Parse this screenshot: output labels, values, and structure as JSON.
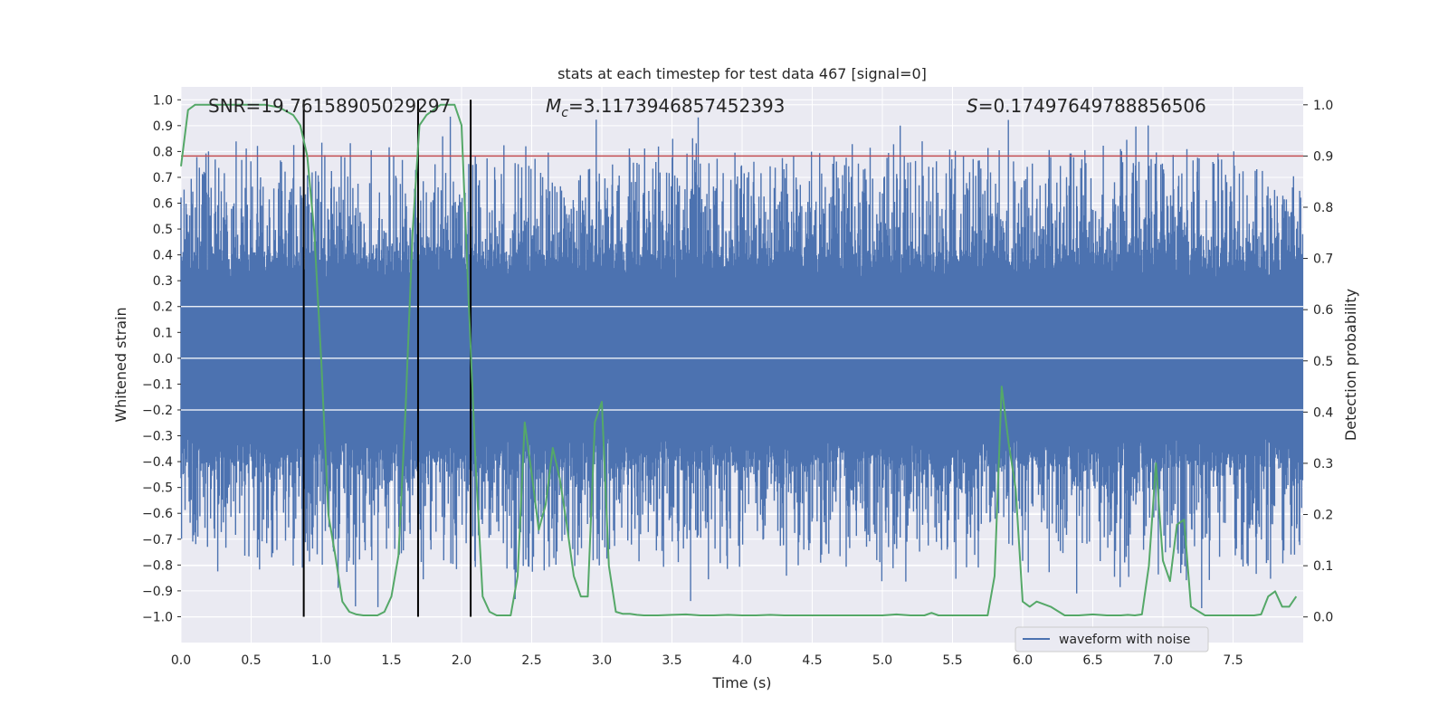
{
  "chart_data": {
    "type": "line",
    "title": "stats at each timestep for test data 467 [signal=0]",
    "xlabel": "Time (s)",
    "ylabel_left": "Whitened strain",
    "ylabel_right": "Detection probability",
    "xlim": [
      0,
      8.0
    ],
    "ylim_left": [
      -1.1,
      1.05
    ],
    "ylim_right": [
      -0.05,
      1.035
    ],
    "x_ticks": [
      "0.0",
      "0.5",
      "1.0",
      "1.5",
      "2.0",
      "2.5",
      "3.0",
      "3.5",
      "4.0",
      "4.5",
      "5.0",
      "5.5",
      "6.0",
      "6.5",
      "7.0",
      "7.5"
    ],
    "y_left_ticks": [
      "1.0",
      "0.9",
      "0.8",
      "0.7",
      "0.6",
      "0.5",
      "0.4",
      "0.3",
      "0.2",
      "0.1",
      "0.0",
      "−0.1",
      "−0.2",
      "−0.3",
      "−0.4",
      "−0.5",
      "−0.6",
      "−0.7",
      "−0.8",
      "−0.9",
      "−1.0"
    ],
    "y_right_ticks": [
      "1.0",
      "0.9",
      "0.8",
      "0.7",
      "0.6",
      "0.5",
      "0.4",
      "0.3",
      "0.2",
      "0.1",
      "0.0"
    ],
    "grid": true,
    "stats": {
      "snr": "SNR=19.76158905029297",
      "mc_symbol": "M",
      "mc_sub": "c",
      "mc_value": "=3.1173946857452393",
      "s_symbol": "S",
      "s_value": "=0.17497649788856506"
    },
    "threshold_probability": 0.9,
    "vertical_markers": [
      0.875,
      1.69,
      2.065
    ],
    "series": [
      {
        "name": "waveform with noise",
        "color": "#4c72b0",
        "axis": "left",
        "description_range": [
          -1.0,
          1.0
        ]
      },
      {
        "color": "#55a868",
        "axis": "right",
        "x": [
          0.0,
          0.05,
          0.1,
          0.2,
          0.3,
          0.4,
          0.5,
          0.6,
          0.7,
          0.8,
          0.85,
          0.9,
          0.95,
          1.0,
          1.05,
          1.1,
          1.15,
          1.2,
          1.25,
          1.3,
          1.35,
          1.4,
          1.45,
          1.5,
          1.55,
          1.6,
          1.65,
          1.7,
          1.75,
          1.8,
          1.85,
          1.9,
          1.95,
          2.0,
          2.05,
          2.1,
          2.15,
          2.2,
          2.25,
          2.3,
          2.35,
          2.4,
          2.45,
          2.5,
          2.55,
          2.6,
          2.65,
          2.7,
          2.75,
          2.8,
          2.85,
          2.9,
          2.95,
          3.0,
          3.05,
          3.1,
          3.15,
          3.2,
          3.25,
          3.3,
          3.4,
          3.5,
          3.6,
          3.7,
          3.8,
          3.9,
          4.0,
          4.1,
          4.2,
          4.3,
          4.4,
          4.5,
          4.6,
          4.7,
          4.8,
          4.9,
          5.0,
          5.1,
          5.2,
          5.3,
          5.35,
          5.4,
          5.5,
          5.6,
          5.7,
          5.75,
          5.8,
          5.85,
          5.9,
          5.95,
          6.0,
          6.05,
          6.1,
          6.2,
          6.3,
          6.4,
          6.5,
          6.6,
          6.7,
          6.75,
          6.8,
          6.85,
          6.9,
          6.95,
          7.0,
          7.05,
          7.1,
          7.15,
          7.2,
          7.3,
          7.4,
          7.5,
          7.6,
          7.65,
          7.7,
          7.75,
          7.8,
          7.85,
          7.9,
          7.95
        ],
        "y": [
          0.88,
          0.99,
          1.0,
          1.0,
          1.0,
          1.0,
          1.0,
          1.0,
          0.995,
          0.98,
          0.96,
          0.9,
          0.75,
          0.5,
          0.2,
          0.12,
          0.03,
          0.01,
          0.005,
          0.003,
          0.003,
          0.003,
          0.01,
          0.04,
          0.12,
          0.4,
          0.75,
          0.96,
          0.98,
          0.99,
          1.0,
          1.0,
          1.0,
          0.96,
          0.62,
          0.3,
          0.04,
          0.01,
          0.003,
          0.003,
          0.003,
          0.08,
          0.38,
          0.28,
          0.17,
          0.22,
          0.33,
          0.27,
          0.18,
          0.08,
          0.04,
          0.04,
          0.38,
          0.42,
          0.1,
          0.01,
          0.006,
          0.006,
          0.004,
          0.003,
          0.003,
          0.004,
          0.005,
          0.003,
          0.003,
          0.004,
          0.003,
          0.003,
          0.004,
          0.003,
          0.003,
          0.003,
          0.003,
          0.003,
          0.003,
          0.003,
          0.003,
          0.005,
          0.003,
          0.003,
          0.008,
          0.003,
          0.003,
          0.003,
          0.003,
          0.003,
          0.08,
          0.45,
          0.34,
          0.25,
          0.03,
          0.02,
          0.03,
          0.02,
          0.003,
          0.003,
          0.005,
          0.003,
          0.003,
          0.004,
          0.003,
          0.005,
          0.1,
          0.3,
          0.11,
          0.07,
          0.18,
          0.19,
          0.02,
          0.003,
          0.003,
          0.003,
          0.003,
          0.003,
          0.005,
          0.04,
          0.05,
          0.02,
          0.02,
          0.04
        ]
      }
    ]
  }
}
